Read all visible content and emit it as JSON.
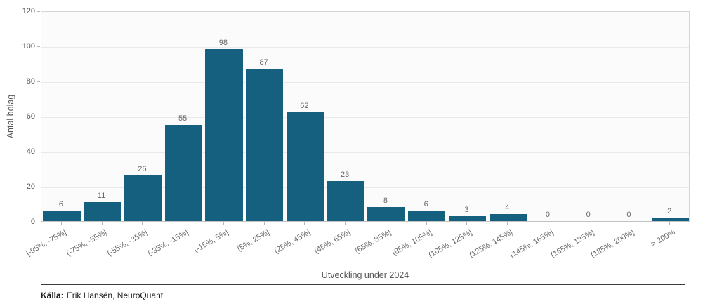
{
  "chart_data": {
    "type": "bar",
    "title": "",
    "xlabel": "Utveckling under 2024",
    "ylabel": "Antal bolag",
    "categories": [
      "[-95%, -75%]",
      "(-75%, -55%]",
      "(-55%, -35%]",
      "(-35%, -15%]",
      "(-15%, 5%]",
      "(5%, 25%]",
      "(25%, 45%]",
      "(45%, 65%]",
      "(65%, 85%]",
      "(85%, 105%]",
      "(105%, 125%]",
      "(125%, 145%]",
      "(145%, 165%]",
      "(165%, 185%]",
      "(185%, 200%]",
      "> 200%"
    ],
    "values": [
      6,
      11,
      26,
      55,
      98,
      87,
      62,
      23,
      8,
      6,
      3,
      4,
      0,
      0,
      0,
      2
    ],
    "yticks": [
      0,
      20,
      40,
      60,
      80,
      100,
      120
    ],
    "ylim": [
      0,
      120
    ],
    "bar_color": "#15607f",
    "grid": true,
    "value_labels": true,
    "legend": null,
    "x_tick_rotation_deg": 30
  },
  "footer": {
    "source_label": "Källa:",
    "source_text": "Erik Hansén, NeuroQuant"
  }
}
